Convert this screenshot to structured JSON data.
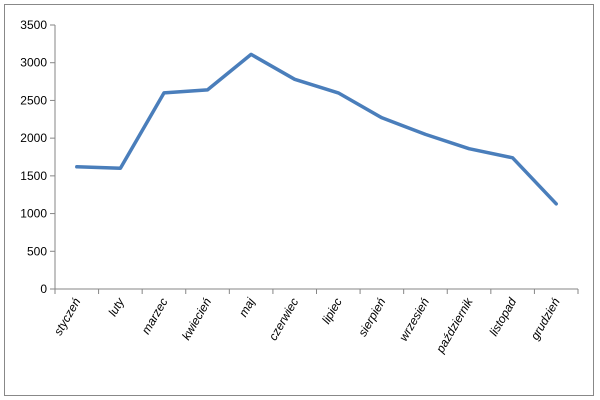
{
  "chart_data": {
    "type": "line",
    "categories": [
      "styczeń",
      "luty",
      "marzec",
      "kwiecień",
      "maj",
      "czerwiec",
      "lipiec",
      "sierpień",
      "wrzesień",
      "październik",
      "listopad",
      "grudzień"
    ],
    "series": [
      {
        "values": [
          1620,
          1600,
          2600,
          2640,
          3110,
          2780,
          2600,
          2270,
          2050,
          1860,
          1740,
          1130
        ]
      }
    ],
    "y_ticks": [
      0,
      500,
      1000,
      1500,
      2000,
      2500,
      3000,
      3500
    ],
    "ylim": [
      0,
      3500
    ],
    "grid": false,
    "legend": "none",
    "line_color": "#4a7ebb"
  }
}
